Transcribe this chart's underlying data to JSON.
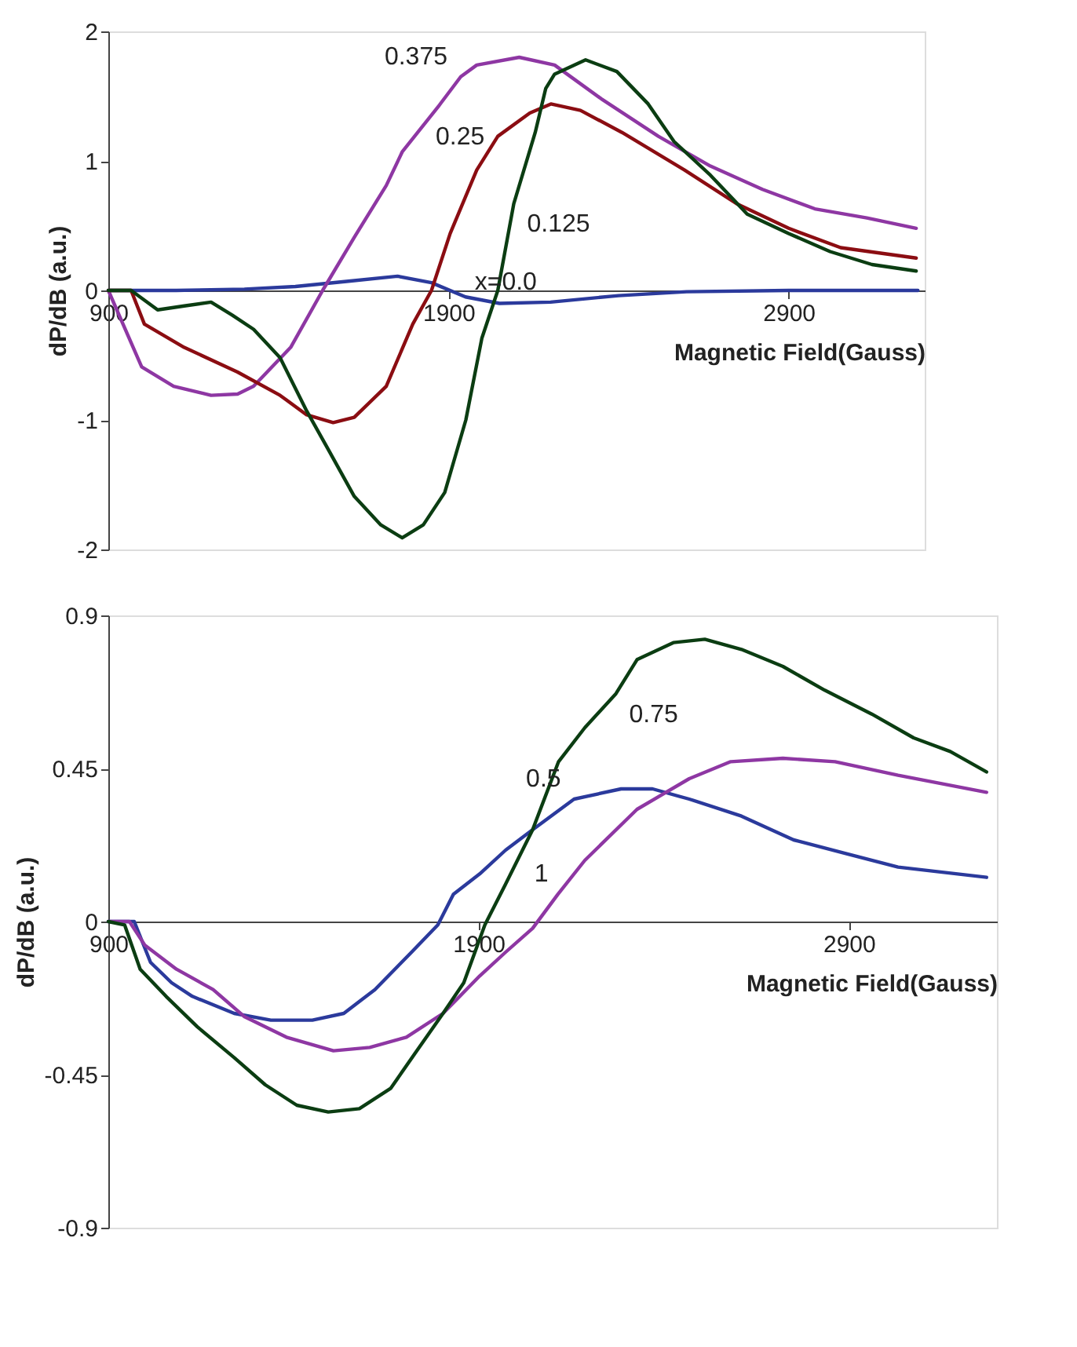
{
  "chart_data": [
    {
      "type": "line",
      "xlabel": "Magnetic Field(Gauss)",
      "ylabel": "dP/dB (a.u.)",
      "xlim": [
        900,
        3300
      ],
      "ylim": [
        -2,
        2
      ],
      "xticks": [
        900,
        1900,
        2900
      ],
      "yticks": [
        -2,
        -1,
        0,
        1,
        2
      ],
      "series": [
        {
          "color": "#2b3a9c",
          "x": [
            900,
            1100,
            1300,
            1450,
            1600,
            1750,
            1850,
            1950,
            2050,
            2200,
            2400,
            2600,
            2900,
            3280
          ],
          "values": [
            0,
            0,
            0.01,
            0.03,
            0.07,
            0.11,
            0.06,
            -0.05,
            -0.1,
            -0.09,
            -0.04,
            -0.01,
            0,
            0
          ]
        },
        {
          "color": "#8e37a3",
          "x": [
            900,
            998,
            1092,
            1202,
            1280,
            1327,
            1436,
            1530,
            1623,
            1717,
            1764,
            1873,
            1936,
            1983,
            2108,
            2212,
            2349,
            2517,
            2670,
            2823,
            2977,
            3130,
            3275
          ],
          "values": [
            0,
            -0.59,
            -0.74,
            -0.81,
            -0.8,
            -0.74,
            -0.44,
            0,
            0.41,
            0.81,
            1.07,
            1.43,
            1.65,
            1.74,
            1.8,
            1.74,
            1.48,
            1.19,
            0.96,
            0.78,
            0.63,
            0.56,
            0.48
          ]
        },
        {
          "color": "#8b0d12",
          "x": [
            900,
            967,
            1006,
            1123,
            1280,
            1405,
            1483,
            1561,
            1623,
            1717,
            1795,
            1850,
            1905,
            1983,
            2045,
            2139,
            2201,
            2288,
            2410,
            2594,
            2747,
            2900,
            3053,
            3275
          ],
          "values": [
            0,
            0,
            -0.26,
            -0.44,
            -0.63,
            -0.81,
            -0.96,
            -1.02,
            -0.98,
            -0.74,
            -0.26,
            0,
            0.44,
            0.93,
            1.19,
            1.37,
            1.44,
            1.39,
            1.22,
            0.93,
            0.67,
            0.48,
            0.33,
            0.25
          ]
        },
        {
          "color": "#0b3d12",
          "x": [
            900,
            967,
            1045,
            1123,
            1202,
            1264,
            1327,
            1405,
            1483,
            1545,
            1623,
            1701,
            1764,
            1826,
            1889,
            1951,
            1998,
            2045,
            2092,
            2155,
            2186,
            2212,
            2303,
            2395,
            2487,
            2563,
            2670,
            2778,
            2900,
            3022,
            3145,
            3275
          ],
          "values": [
            0,
            0,
            -0.15,
            -0.12,
            -0.09,
            -0.19,
            -0.3,
            -0.52,
            -0.93,
            -1.22,
            -1.59,
            -1.81,
            -1.91,
            -1.81,
            -1.56,
            -1.0,
            -0.37,
            0,
            0.67,
            1.22,
            1.56,
            1.67,
            1.78,
            1.69,
            1.44,
            1.15,
            0.89,
            0.59,
            0.44,
            0.3,
            0.2,
            0.15
          ]
        }
      ],
      "annotations": [
        {
          "text": "0.375",
          "x": 1936,
          "y": 1.65
        },
        {
          "text": "0.25",
          "x": 2045,
          "y": 1.19
        },
        {
          "text": "0.125",
          "x": 2092,
          "y": 0.67
        },
        {
          "text": "x=0.0",
          "x": 2200,
          "y": -0.09
        }
      ]
    },
    {
      "type": "line",
      "xlabel": "Magnetic Field(Gauss)",
      "ylabel": "dP/dB (a.u.)",
      "xlim": [
        900,
        3300
      ],
      "ylim": [
        -0.9,
        0.9
      ],
      "xticks": [
        900,
        1900,
        2900
      ],
      "yticks": [
        -0.9,
        -0.45,
        0,
        0.45,
        0.9
      ],
      "series": [
        {
          "color": "#2b3a9c",
          "x": [
            900,
            970,
            1014,
            1071,
            1127,
            1240,
            1339,
            1451,
            1536,
            1620,
            1719,
            1790,
            1832,
            1903,
            1973,
            2046,
            2158,
            2285,
            2370,
            2469,
            2610,
            2751,
            2892,
            3033,
            3272
          ],
          "values": [
            0,
            0,
            -0.12,
            -0.18,
            -0.22,
            -0.27,
            -0.29,
            -0.29,
            -0.27,
            -0.2,
            -0.09,
            -0.01,
            0.08,
            0.14,
            0.21,
            0.27,
            0.36,
            0.39,
            0.39,
            0.36,
            0.31,
            0.24,
            0.2,
            0.16,
            0.13
          ]
        },
        {
          "color": "#8e37a3",
          "x": [
            900,
            957,
            999,
            1084,
            1183,
            1268,
            1381,
            1508,
            1606,
            1705,
            1804,
            1903,
            1973,
            2046,
            2114,
            2187,
            2328,
            2469,
            2581,
            2722,
            2863,
            3033,
            3272
          ],
          "values": [
            0,
            0,
            -0.07,
            -0.14,
            -0.2,
            -0.28,
            -0.34,
            -0.38,
            -0.37,
            -0.34,
            -0.27,
            -0.16,
            -0.09,
            -0.02,
            0.08,
            0.18,
            0.33,
            0.42,
            0.47,
            0.48,
            0.47,
            0.43,
            0.38
          ]
        },
        {
          "color": "#0b3d12",
          "x": [
            900,
            944,
            986,
            1056,
            1141,
            1240,
            1324,
            1409,
            1494,
            1578,
            1663,
            1733,
            1804,
            1860,
            1917,
            1973,
            2046,
            2116,
            2187,
            2271,
            2328,
            2426,
            2511,
            2610,
            2722,
            2835,
            2962,
            3075,
            3174,
            3272
          ],
          "values": [
            0,
            -0.01,
            -0.14,
            -0.22,
            -0.31,
            -0.4,
            -0.48,
            -0.54,
            -0.56,
            -0.55,
            -0.49,
            -0.38,
            -0.27,
            -0.18,
            -0.01,
            0.11,
            0.27,
            0.47,
            0.57,
            0.67,
            0.77,
            0.82,
            0.83,
            0.8,
            0.75,
            0.68,
            0.61,
            0.54,
            0.5,
            0.44
          ]
        }
      ],
      "annotations": [
        {
          "text": "0.75",
          "x": 2271,
          "y": 0.67
        },
        {
          "text": "0.5",
          "x": 2158,
          "y": 0.36
        },
        {
          "text": "1",
          "x": 2114,
          "y": 0.08
        }
      ]
    }
  ]
}
